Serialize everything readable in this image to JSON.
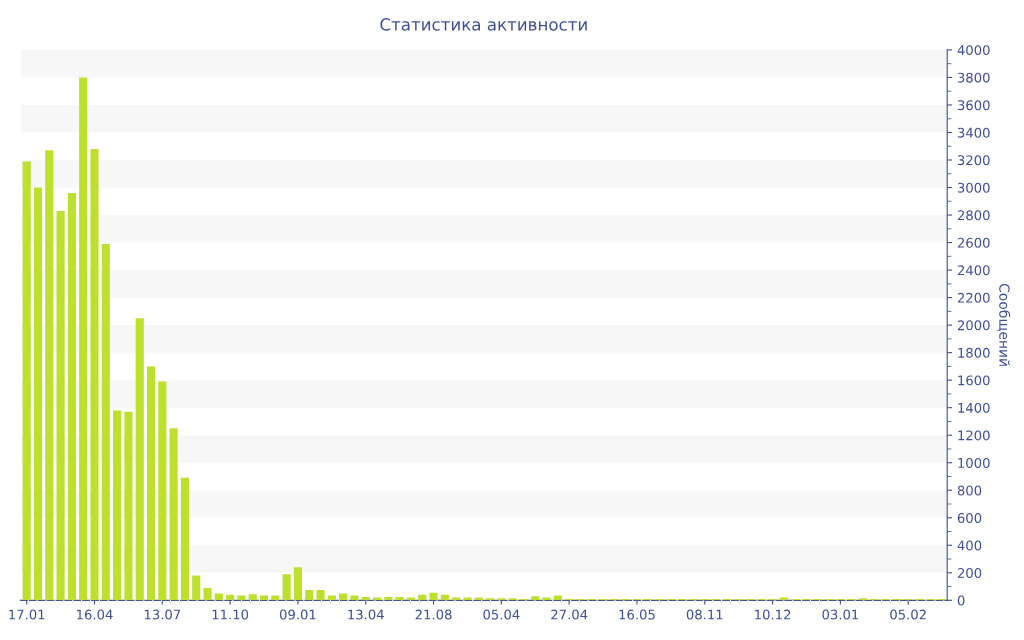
{
  "chart_data": {
    "type": "bar",
    "title": "Статистика активности",
    "ylabel": "Сообщений",
    "categories": [
      "17.01",
      null,
      null,
      null,
      null,
      null,
      "16.04",
      null,
      null,
      null,
      null,
      null,
      "13.07",
      null,
      null,
      null,
      null,
      null,
      "11.10",
      null,
      null,
      null,
      null,
      null,
      "09.01",
      null,
      null,
      null,
      null,
      null,
      "13.04",
      null,
      null,
      null,
      null,
      null,
      "21.08",
      null,
      null,
      null,
      null,
      null,
      "05.04",
      null,
      null,
      null,
      null,
      null,
      "27.04",
      null,
      null,
      null,
      null,
      null,
      "16.05",
      null,
      null,
      null,
      null,
      null,
      "08.11",
      null,
      null,
      null,
      null,
      null,
      "10.12",
      null,
      null,
      null,
      null,
      null,
      "03.01",
      null,
      null,
      null,
      null,
      null,
      "05.02",
      null,
      null,
      null
    ],
    "series": [
      {
        "color": "#bde02e",
        "values": [
          3190,
          3000,
          3270,
          2830,
          2960,
          3800,
          3280,
          2590,
          1380,
          1370,
          2050,
          1700,
          1590,
          1250,
          890,
          180,
          90,
          50,
          40,
          35,
          45,
          35,
          35,
          190,
          240,
          75,
          75,
          35,
          50,
          35,
          25,
          20,
          25,
          25,
          20,
          40,
          55,
          40,
          20,
          20,
          20,
          15,
          15,
          15,
          10,
          30,
          20,
          35,
          10,
          10,
          10,
          10,
          10,
          10,
          10,
          10,
          10,
          10,
          10,
          10,
          10,
          10,
          10,
          10,
          10,
          10,
          10,
          20,
          10,
          10,
          10,
          10,
          10,
          10,
          15,
          10,
          10,
          10,
          10,
          10,
          10,
          10
        ]
      }
    ],
    "ylim": [
      0,
      4000
    ],
    "yticks": [
      0,
      200,
      400,
      600,
      800,
      1000,
      1200,
      1400,
      1600,
      1800,
      2000,
      2200,
      2400,
      2600,
      2800,
      3000,
      3200,
      3400,
      3600,
      3800,
      4000
    ],
    "bands": [
      {
        "axis": "y",
        "from": 200,
        "to": 400,
        "color": "#f7f7f7"
      },
      {
        "axis": "y",
        "from": 600,
        "to": 800,
        "color": "#f7f7f7"
      },
      {
        "axis": "y",
        "from": 1000,
        "to": 1200,
        "color": "#f7f7f7"
      },
      {
        "axis": "y",
        "from": 1400,
        "to": 1600,
        "color": "#f7f7f7"
      },
      {
        "axis": "y",
        "from": 1800,
        "to": 2000,
        "color": "#f7f7f7"
      },
      {
        "axis": "y",
        "from": 2200,
        "to": 2400,
        "color": "#f7f7f7"
      },
      {
        "axis": "y",
        "from": 2600,
        "to": 2800,
        "color": "#f7f7f7"
      },
      {
        "axis": "y",
        "from": 3000,
        "to": 3200,
        "color": "#f7f7f7"
      },
      {
        "axis": "y",
        "from": 3400,
        "to": 3600,
        "color": "#f7f7f7"
      },
      {
        "axis": "y",
        "from": 3800,
        "to": 4000,
        "color": "#f7f7f7"
      }
    ]
  }
}
